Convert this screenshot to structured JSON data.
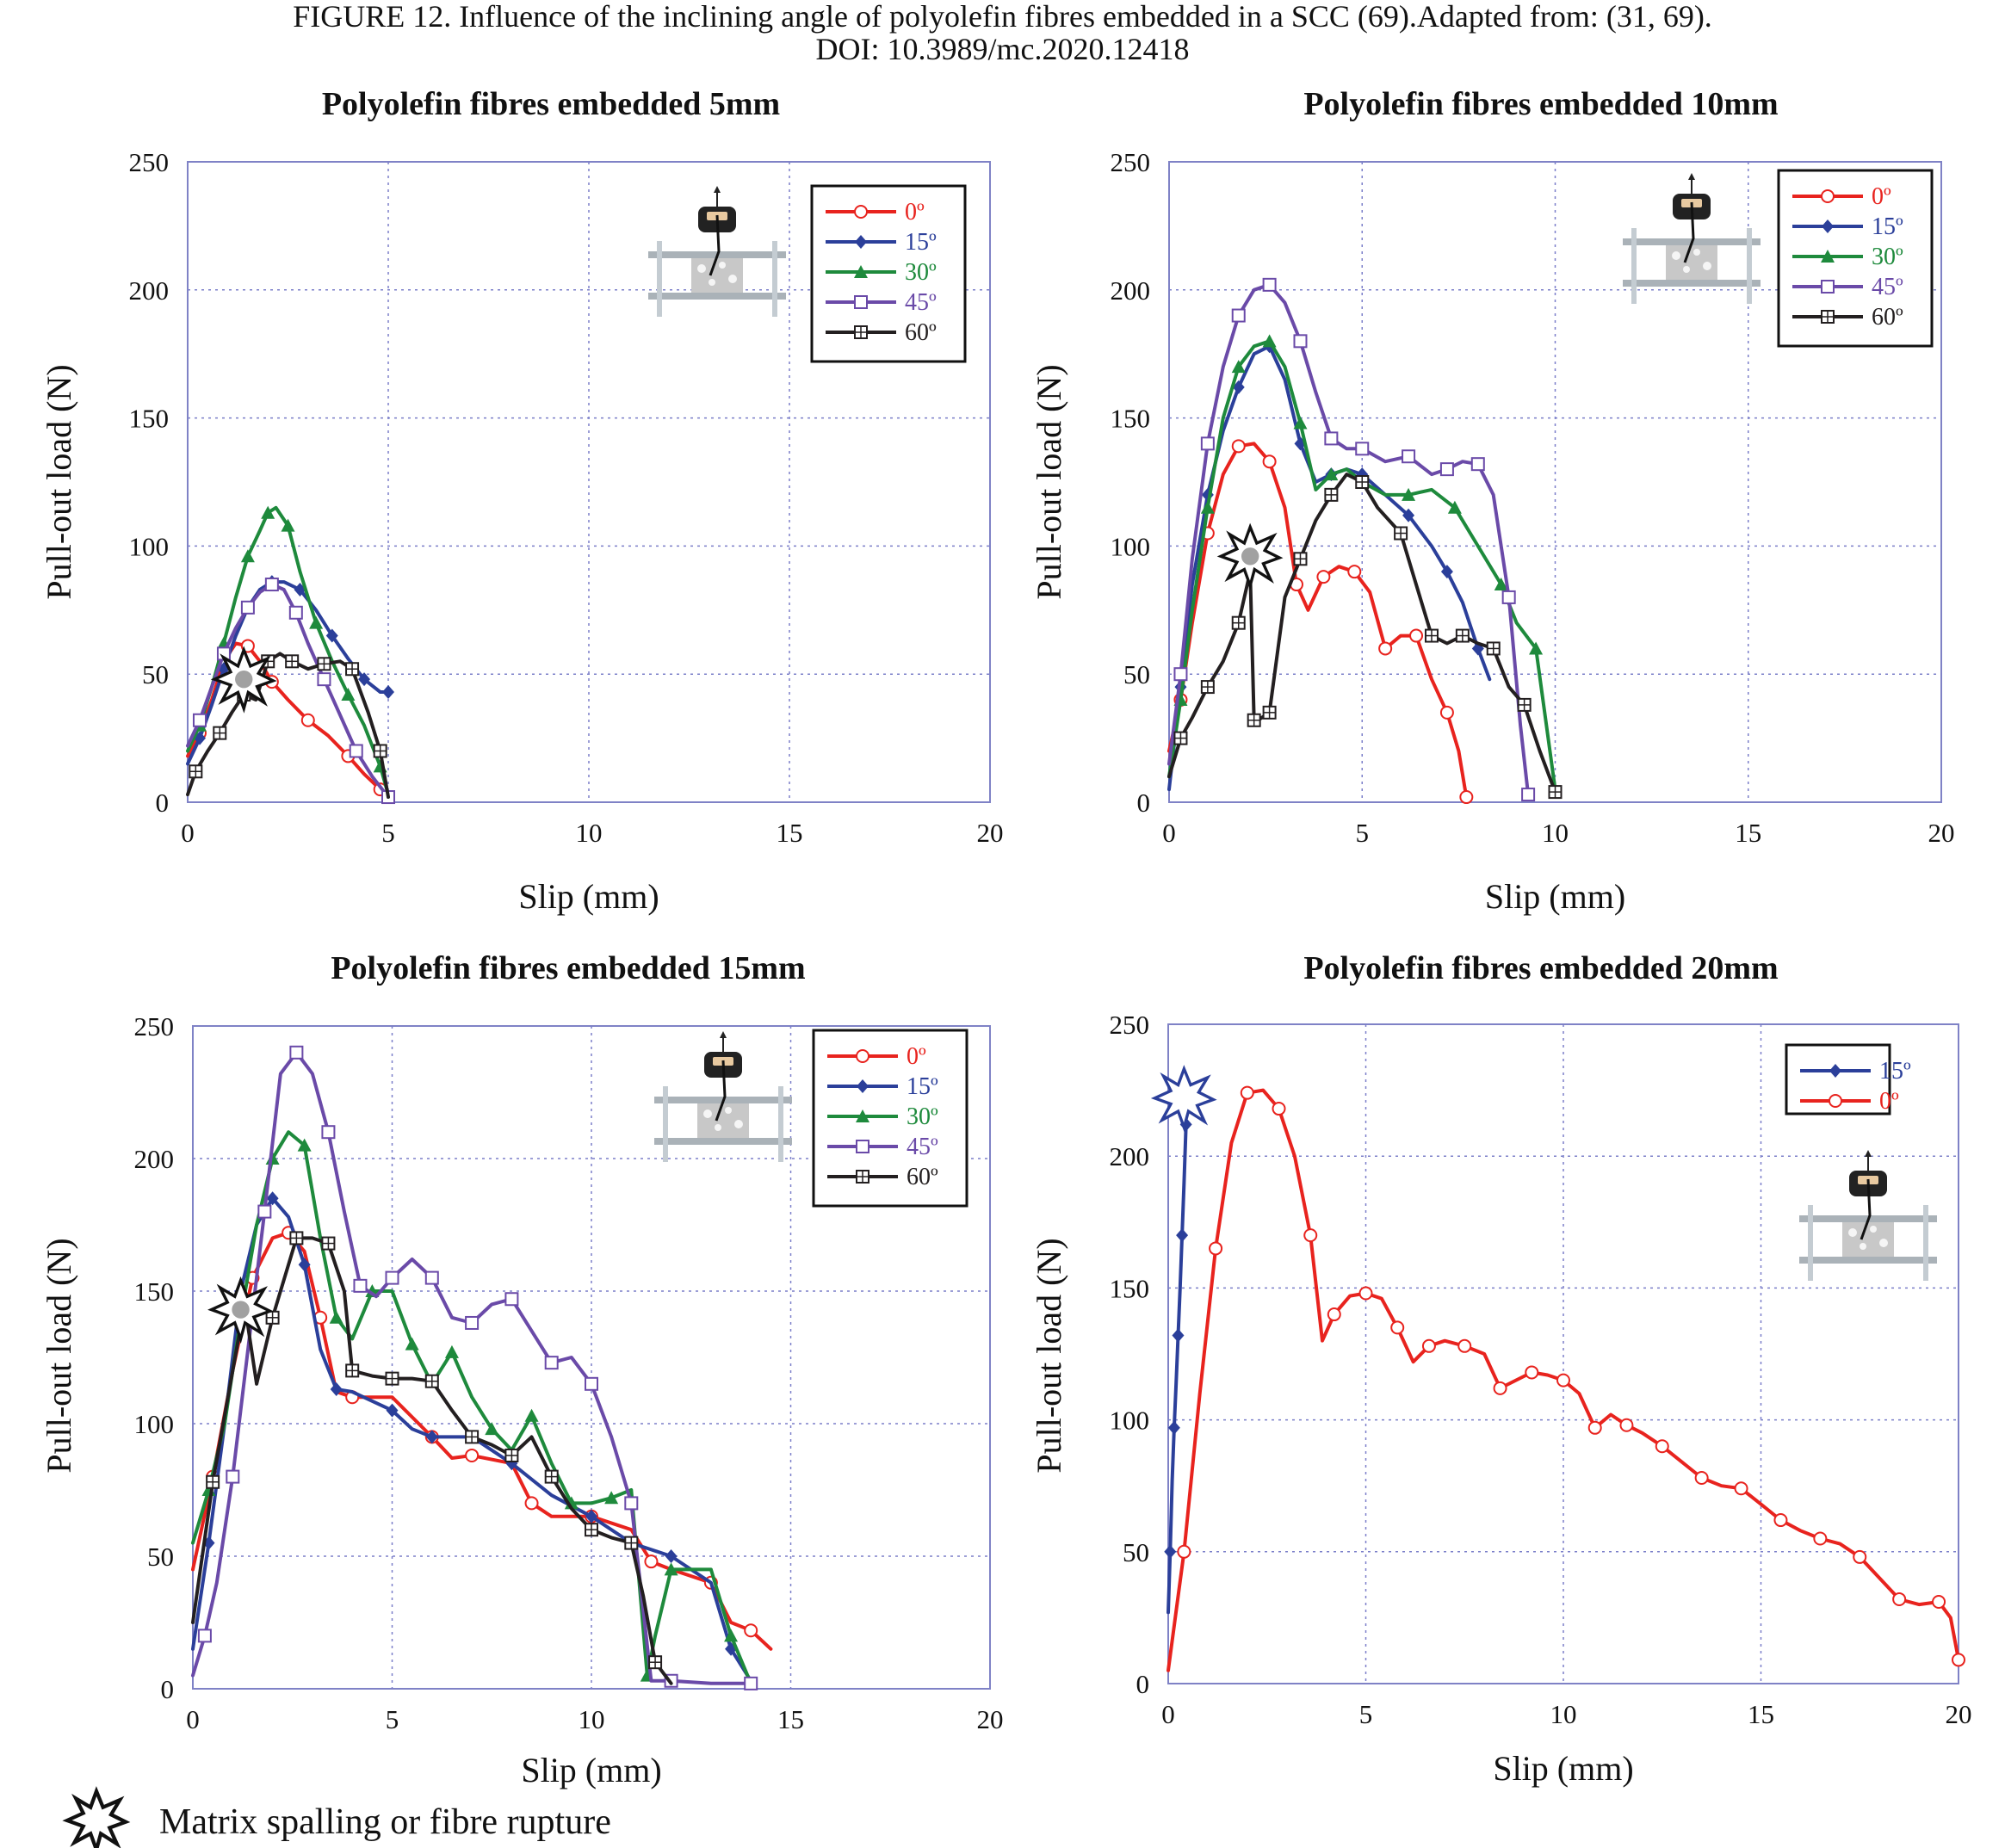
{
  "caption": {
    "line1": "FIGURE 12.    Influence of the inclining angle of polyolefin fibres embedded in a SCC (69).Adapted from: (31, 69).",
    "line2": "DOI: 10.3989/mc.2020.12418"
  },
  "footnote": "Matrix spalling or fibre rupture",
  "colors": {
    "0": "#e8231e",
    "15": "#2b3f9a",
    "30": "#1e8a3c",
    "45": "#6a4aa8",
    "60": "#231f20",
    "grid": "#7b7fc9",
    "frame": "#7f82c6"
  },
  "chart_data": [
    {
      "type": "line",
      "title": "Polyolefin fibres embedded 5mm",
      "xlabel": "Slip (mm)",
      "ylabel": "Pull-out load (N)",
      "xlim": [
        0,
        20
      ],
      "ylim": [
        0,
        250
      ],
      "xticks": [
        0,
        5,
        10,
        15,
        20
      ],
      "yticks": [
        0,
        50,
        100,
        150,
        200,
        250
      ],
      "grid": true,
      "legend_position": "top-right",
      "spall_marker": {
        "x": 1.4,
        "y": 48
      },
      "series": [
        {
          "name": "0º",
          "color_key": "0",
          "marker": "open-circle",
          "x": [
            0,
            0.3,
            0.6,
            0.9,
            1.2,
            1.5,
            1.8,
            2.1,
            2.5,
            3.0,
            3.5,
            4.0,
            4.4,
            4.8,
            5.0
          ],
          "y": [
            18,
            27,
            40,
            55,
            62,
            61,
            55,
            47,
            40,
            32,
            26,
            18,
            11,
            5,
            1
          ]
        },
        {
          "name": "15º",
          "color_key": "15",
          "marker": "filled-diamond",
          "x": [
            0,
            0.3,
            0.6,
            0.9,
            1.2,
            1.5,
            1.8,
            2.1,
            2.4,
            2.8,
            3.2,
            3.6,
            4.0,
            4.4,
            4.8,
            5.0
          ],
          "y": [
            15,
            25,
            38,
            52,
            65,
            76,
            83,
            86,
            86,
            83,
            75,
            65,
            56,
            48,
            43,
            43
          ]
        },
        {
          "name": "30º",
          "color_key": "30",
          "marker": "filled-triangle",
          "x": [
            0,
            0.3,
            0.6,
            0.9,
            1.2,
            1.5,
            1.8,
            2.0,
            2.2,
            2.5,
            2.8,
            3.2,
            3.6,
            4.0,
            4.4,
            4.8,
            5.0
          ],
          "y": [
            20,
            30,
            45,
            62,
            80,
            96,
            106,
            113,
            115,
            108,
            90,
            70,
            55,
            42,
            30,
            14,
            3
          ]
        },
        {
          "name": "45º",
          "color_key": "45",
          "marker": "open-square",
          "x": [
            0,
            0.3,
            0.6,
            0.9,
            1.2,
            1.5,
            1.8,
            2.1,
            2.4,
            2.7,
            3.0,
            3.4,
            3.8,
            4.2,
            4.6,
            5.0
          ],
          "y": [
            22,
            32,
            45,
            58,
            68,
            76,
            82,
            85,
            83,
            74,
            62,
            48,
            34,
            20,
            10,
            2
          ]
        },
        {
          "name": "60º",
          "color_key": "60",
          "marker": "crossed-square",
          "x": [
            0,
            0.2,
            0.5,
            0.8,
            1.1,
            1.4,
            1.7,
            2.0,
            2.3,
            2.6,
            3.0,
            3.4,
            3.8,
            4.1,
            4.5,
            4.8,
            5.0
          ],
          "y": [
            3,
            12,
            20,
            27,
            35,
            42,
            40,
            55,
            58,
            55,
            52,
            54,
            55,
            52,
            35,
            20,
            2
          ]
        }
      ]
    },
    {
      "type": "line",
      "title": "Polyolefin fibres embedded 10mm",
      "xlabel": "Slip (mm)",
      "ylabel": "Pull-out load (N)",
      "xlim": [
        0,
        20
      ],
      "ylim": [
        0,
        250
      ],
      "xticks": [
        0,
        5,
        10,
        15,
        20
      ],
      "yticks": [
        0,
        50,
        100,
        150,
        200,
        250
      ],
      "grid": true,
      "legend_position": "top-right",
      "spall_marker": {
        "x": 2.1,
        "y": 96
      },
      "series": [
        {
          "name": "0º",
          "color_key": "0",
          "marker": "open-circle",
          "x": [
            0,
            0.3,
            0.6,
            1.0,
            1.4,
            1.8,
            2.2,
            2.6,
            3.0,
            3.3,
            3.6,
            4.0,
            4.4,
            4.8,
            5.2,
            5.6,
            6.0,
            6.4,
            6.8,
            7.2,
            7.5,
            7.7
          ],
          "y": [
            20,
            40,
            70,
            105,
            128,
            139,
            140,
            133,
            115,
            85,
            75,
            88,
            92,
            90,
            82,
            60,
            65,
            65,
            48,
            35,
            20,
            2
          ]
        },
        {
          "name": "15º",
          "color_key": "15",
          "marker": "filled-diamond",
          "x": [
            0,
            0.3,
            0.6,
            1.0,
            1.4,
            1.8,
            2.2,
            2.6,
            3.0,
            3.4,
            3.8,
            4.2,
            4.6,
            5.0,
            5.6,
            6.2,
            6.8,
            7.2,
            7.6,
            8.0,
            8.3
          ],
          "y": [
            5,
            45,
            85,
            120,
            145,
            162,
            175,
            178,
            165,
            140,
            125,
            128,
            130,
            128,
            120,
            112,
            100,
            90,
            78,
            60,
            48
          ]
        },
        {
          "name": "30º",
          "color_key": "30",
          "marker": "filled-triangle",
          "x": [
            0,
            0.3,
            0.6,
            1.0,
            1.4,
            1.8,
            2.2,
            2.6,
            3.0,
            3.4,
            3.8,
            4.2,
            4.6,
            5.0,
            5.6,
            6.2,
            6.8,
            7.4,
            8.0,
            8.6,
            9.0,
            9.5,
            10.0
          ],
          "y": [
            10,
            40,
            75,
            115,
            150,
            170,
            178,
            180,
            170,
            148,
            122,
            128,
            130,
            125,
            120,
            120,
            122,
            115,
            100,
            85,
            70,
            60,
            5
          ]
        },
        {
          "name": "45º",
          "color_key": "45",
          "marker": "open-square",
          "x": [
            0,
            0.3,
            0.6,
            1.0,
            1.4,
            1.8,
            2.2,
            2.6,
            3.0,
            3.4,
            3.8,
            4.2,
            4.6,
            5.0,
            5.6,
            6.2,
            6.8,
            7.2,
            7.6,
            8.0,
            8.4,
            8.8,
            9.1,
            9.3
          ],
          "y": [
            15,
            50,
            95,
            140,
            170,
            190,
            200,
            202,
            195,
            180,
            160,
            142,
            138,
            138,
            133,
            135,
            128,
            130,
            133,
            132,
            120,
            80,
            30,
            3
          ]
        },
        {
          "name": "60º",
          "color_key": "60",
          "marker": "crossed-square",
          "x": [
            0,
            0.3,
            0.6,
            1.0,
            1.4,
            1.8,
            2.1,
            2.2,
            2.3,
            2.6,
            3.0,
            3.4,
            3.8,
            4.2,
            4.6,
            5.0,
            5.4,
            6.0,
            6.4,
            6.8,
            7.2,
            7.6,
            8.0,
            8.4,
            8.8,
            9.2,
            9.6,
            10.0
          ],
          "y": [
            10,
            25,
            33,
            45,
            55,
            70,
            90,
            32,
            32,
            35,
            80,
            95,
            110,
            120,
            128,
            125,
            115,
            105,
            85,
            65,
            62,
            65,
            62,
            60,
            45,
            38,
            20,
            4
          ]
        }
      ]
    },
    {
      "type": "line",
      "title": "Polyolefin fibres embedded 15mm",
      "xlabel": "Slip (mm)",
      "ylabel": "Pull-out load (N)",
      "xlim": [
        0,
        20
      ],
      "ylim": [
        0,
        250
      ],
      "xticks": [
        0,
        5,
        10,
        15,
        20
      ],
      "yticks": [
        0,
        50,
        100,
        150,
        200,
        250
      ],
      "grid": true,
      "legend_position": "top-right",
      "spall_marker": {
        "x": 1.2,
        "y": 143
      },
      "series": [
        {
          "name": "0º",
          "color_key": "0",
          "marker": "open-circle",
          "x": [
            0,
            0.5,
            1.0,
            1.5,
            2.0,
            2.4,
            2.8,
            3.2,
            3.6,
            4.0,
            5.0,
            6.0,
            6.5,
            7.0,
            8.0,
            8.5,
            9.0,
            10.0,
            11.0,
            11.5,
            12.0,
            13.0,
            13.5,
            14.0,
            14.5
          ],
          "y": [
            45,
            80,
            120,
            155,
            170,
            172,
            165,
            140,
            112,
            110,
            110,
            95,
            87,
            88,
            85,
            70,
            65,
            65,
            60,
            48,
            45,
            40,
            25,
            22,
            15
          ]
        },
        {
          "name": "15º",
          "color_key": "15",
          "marker": "filled-diamond",
          "x": [
            0,
            0.4,
            0.8,
            1.2,
            1.6,
            2.0,
            2.4,
            2.8,
            3.2,
            3.6,
            4.0,
            5.0,
            5.5,
            6.0,
            7.0,
            8.0,
            9.0,
            10.0,
            11.0,
            12.0,
            13.0,
            13.5,
            14.0
          ],
          "y": [
            15,
            55,
            100,
            150,
            175,
            185,
            178,
            160,
            128,
            113,
            112,
            105,
            98,
            95,
            95,
            85,
            73,
            65,
            55,
            50,
            40,
            15,
            3
          ]
        },
        {
          "name": "30º",
          "color_key": "30",
          "marker": "filled-triangle",
          "x": [
            0,
            0.4,
            0.8,
            1.2,
            1.6,
            2.0,
            2.4,
            2.8,
            3.2,
            3.6,
            4.0,
            4.5,
            5.0,
            5.5,
            6.0,
            6.5,
            7.0,
            7.5,
            8.0,
            8.5,
            9.0,
            9.5,
            10.0,
            10.5,
            11.0,
            11.4,
            11.6,
            12.0,
            13.0,
            13.5,
            14.0
          ],
          "y": [
            55,
            75,
            100,
            140,
            175,
            200,
            210,
            205,
            170,
            140,
            132,
            150,
            150,
            130,
            115,
            127,
            110,
            98,
            90,
            103,
            85,
            70,
            70,
            72,
            75,
            5,
            20,
            45,
            45,
            20,
            2
          ]
        },
        {
          "name": "45º",
          "color_key": "45",
          "marker": "open-square",
          "x": [
            0,
            0.3,
            0.6,
            1.0,
            1.4,
            1.8,
            2.2,
            2.6,
            3.0,
            3.4,
            3.8,
            4.2,
            4.6,
            5.0,
            5.5,
            6.0,
            6.5,
            7.0,
            7.5,
            8.0,
            8.5,
            9.0,
            9.5,
            10.0,
            10.5,
            11.0,
            11.5,
            12.0,
            13.0,
            14.0
          ],
          "y": [
            5,
            20,
            40,
            80,
            130,
            180,
            232,
            240,
            232,
            210,
            180,
            152,
            148,
            155,
            162,
            155,
            140,
            138,
            145,
            147,
            135,
            123,
            125,
            115,
            95,
            70,
            3,
            3,
            2,
            2
          ]
        },
        {
          "name": "60º",
          "color_key": "60",
          "marker": "crossed-square",
          "x": [
            0,
            0.5,
            1.0,
            1.3,
            1.6,
            2.0,
            2.3,
            2.6,
            3.0,
            3.4,
            3.8,
            4.0,
            4.5,
            5.0,
            5.5,
            6.0,
            6.5,
            7.0,
            7.5,
            8.0,
            8.5,
            9.0,
            9.5,
            10.0,
            10.5,
            11.0,
            11.3,
            11.6,
            12.0
          ],
          "y": [
            25,
            78,
            120,
            145,
            115,
            140,
            155,
            170,
            170,
            168,
            150,
            120,
            118,
            117,
            117,
            116,
            105,
            95,
            92,
            88,
            95,
            80,
            68,
            60,
            57,
            55,
            35,
            10,
            2
          ]
        }
      ]
    },
    {
      "type": "line",
      "title": "Polyolefin fibres embedded 20mm",
      "xlabel": "Slip (mm)",
      "ylabel": "Pull-out load (N)",
      "xlim": [
        0,
        20
      ],
      "ylim": [
        0,
        250
      ],
      "xticks": [
        0,
        5,
        10,
        15,
        20
      ],
      "yticks": [
        0,
        50,
        100,
        150,
        200,
        250
      ],
      "grid": true,
      "legend_position": "top-right",
      "spall_marker": {
        "x": 0.4,
        "y": 222
      },
      "series": [
        {
          "name": "15º",
          "color_key": "15",
          "marker": "filled-diamond",
          "x": [
            0,
            0.05,
            0.1,
            0.15,
            0.2,
            0.25,
            0.3,
            0.35,
            0.4,
            0.45
          ],
          "y": [
            27,
            50,
            77,
            97,
            114,
            132,
            150,
            170,
            190,
            212
          ]
        },
        {
          "name": "0º",
          "color_key": "0",
          "marker": "open-circle",
          "x": [
            0,
            0.4,
            0.8,
            1.2,
            1.6,
            2.0,
            2.4,
            2.8,
            3.2,
            3.6,
            3.9,
            4.2,
            4.6,
            5.0,
            5.4,
            5.8,
            6.2,
            6.6,
            7.0,
            7.5,
            8.0,
            8.4,
            8.8,
            9.2,
            9.6,
            10.0,
            10.4,
            10.8,
            11.2,
            11.6,
            12.0,
            12.5,
            13.0,
            13.5,
            14.0,
            14.5,
            15.0,
            15.5,
            16.0,
            16.5,
            17.0,
            17.5,
            18.0,
            18.5,
            19.0,
            19.5,
            19.8,
            20.0
          ],
          "y": [
            5,
            50,
            110,
            165,
            205,
            224,
            225,
            218,
            200,
            170,
            130,
            140,
            147,
            148,
            146,
            135,
            122,
            128,
            130,
            128,
            125,
            112,
            115,
            118,
            117,
            115,
            110,
            97,
            102,
            98,
            95,
            90,
            84,
            78,
            75,
            74,
            68,
            62,
            58,
            55,
            53,
            48,
            40,
            32,
            30,
            31,
            25,
            9
          ]
        }
      ]
    }
  ]
}
